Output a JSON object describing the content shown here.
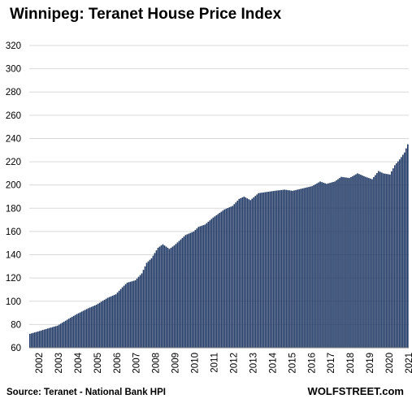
{
  "chart_data": {
    "type": "bar",
    "title": "Winnipeg: Teranet House Price Index",
    "xlabel": "",
    "ylabel": "",
    "ylim": [
      60,
      320
    ],
    "y_ticks": [
      "60",
      "80",
      "100",
      "120",
      "140",
      "160",
      "180",
      "200",
      "220",
      "240",
      "260",
      "280",
      "300",
      "320"
    ],
    "x_ticks": [
      "2002",
      "2003",
      "2004",
      "2005",
      "2006",
      "2007",
      "2008",
      "2009",
      "2010",
      "2011",
      "2012",
      "2013",
      "2014",
      "2015",
      "2016",
      "2017",
      "2018",
      "2019",
      "2020",
      "2021"
    ],
    "grid": true,
    "color": "#1f3864",
    "series_frequency": "monthly",
    "anchors": [
      [
        "2002-01",
        72
      ],
      [
        "2002-06",
        74
      ],
      [
        "2003-01",
        77
      ],
      [
        "2003-06",
        79
      ],
      [
        "2004-01",
        85
      ],
      [
        "2004-06",
        89
      ],
      [
        "2005-01",
        94
      ],
      [
        "2005-06",
        97
      ],
      [
        "2006-01",
        103
      ],
      [
        "2006-06",
        106
      ],
      [
        "2006-10",
        112
      ],
      [
        "2007-01",
        116
      ],
      [
        "2007-06",
        118
      ],
      [
        "2007-10",
        124
      ],
      [
        "2008-01",
        133
      ],
      [
        "2008-04",
        137
      ],
      [
        "2008-08",
        146
      ],
      [
        "2008-11",
        149
      ],
      [
        "2009-03",
        145
      ],
      [
        "2009-06",
        148
      ],
      [
        "2010-01",
        157
      ],
      [
        "2010-06",
        160
      ],
      [
        "2010-09",
        164
      ],
      [
        "2011-01",
        166
      ],
      [
        "2011-06",
        172
      ],
      [
        "2012-01",
        179
      ],
      [
        "2012-06",
        182
      ],
      [
        "2012-10",
        188
      ],
      [
        "2013-01",
        190
      ],
      [
        "2013-05",
        187
      ],
      [
        "2013-10",
        193
      ],
      [
        "2014-03",
        194
      ],
      [
        "2014-08",
        195
      ],
      [
        "2015-02",
        196
      ],
      [
        "2015-07",
        195
      ],
      [
        "2016-01",
        197
      ],
      [
        "2016-07",
        199
      ],
      [
        "2016-12",
        203
      ],
      [
        "2017-04",
        201
      ],
      [
        "2017-09",
        203
      ],
      [
        "2018-01",
        207
      ],
      [
        "2018-06",
        206
      ],
      [
        "2018-11",
        210
      ],
      [
        "2019-04",
        207
      ],
      [
        "2019-08",
        205
      ],
      [
        "2019-12",
        212
      ],
      [
        "2020-03",
        210
      ],
      [
        "2020-07",
        209
      ],
      [
        "2020-10",
        217
      ],
      [
        "2021-01",
        222
      ],
      [
        "2021-04",
        228
      ],
      [
        "2021-06",
        235
      ]
    ],
    "source": "Source: Teranet - National Bank HPI",
    "brand": "WOLFSTREET.com"
  }
}
